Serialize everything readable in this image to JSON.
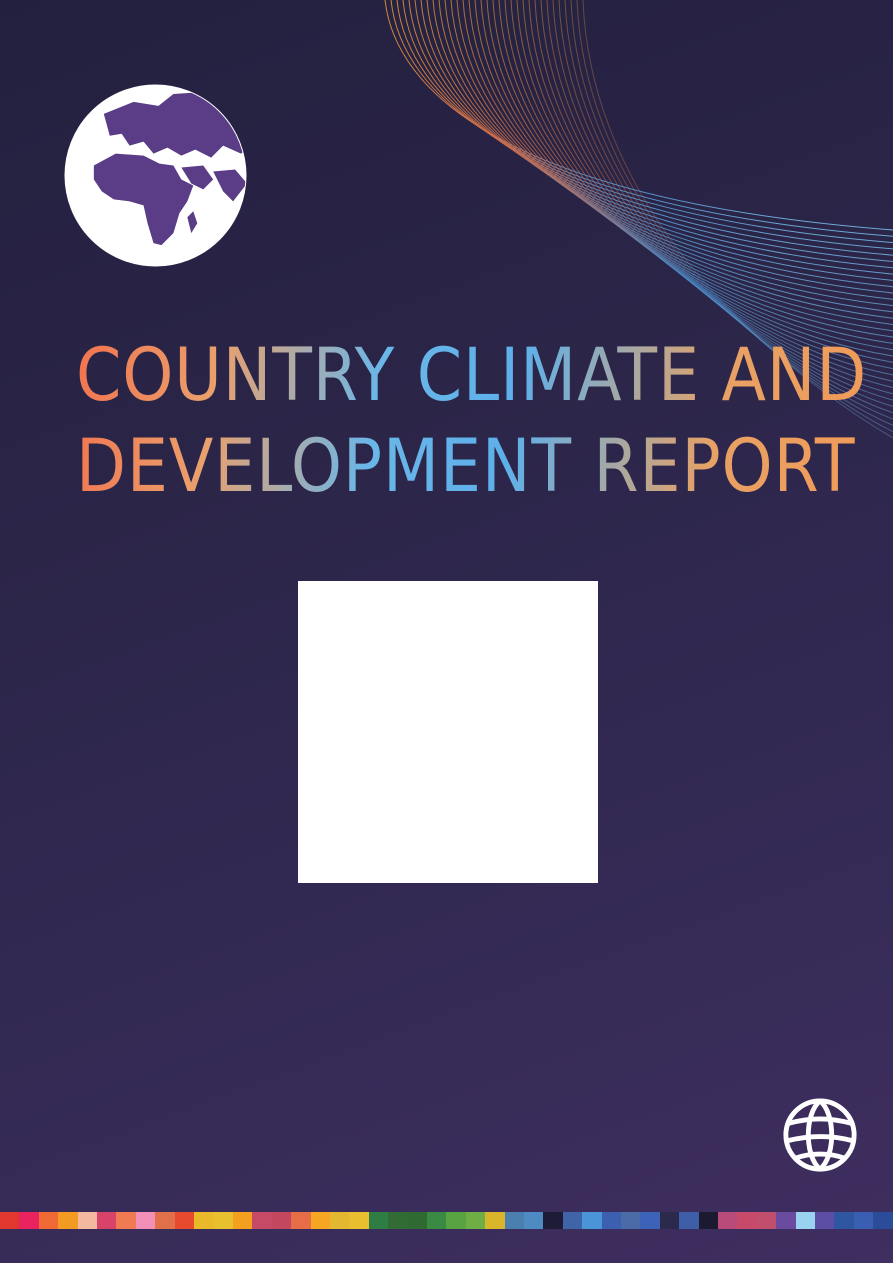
{
  "cover": {
    "title_line1": "COUNTRY CLIMATE AND",
    "title_line2": "DEVELOPMENT REPORT"
  },
  "icons": {
    "globe": "globe-africa-europe-icon",
    "logo": "world-bank-globe-icon"
  },
  "colors": {
    "background_top": "#23203f",
    "background_bottom": "#3f2e60",
    "globe_land": "#5a3d86",
    "title_gradient": [
      "#f2734e",
      "#e9a06d",
      "#6ab6e8",
      "#5eb0ea",
      "#e7a165",
      "#f29a57"
    ]
  },
  "stripe_colors": [
    "#e0382f",
    "#e8235f",
    "#f06a35",
    "#f29a22",
    "#f2b8a0",
    "#d9436a",
    "#f07a52",
    "#f28fb6",
    "#e0704a",
    "#e74a2c",
    "#e9b92a",
    "#e8c02f",
    "#f2a01e",
    "#c64a66",
    "#c2475f",
    "#e76d47",
    "#f5a623",
    "#e3b72f",
    "#e8c02f",
    "#2e7d44",
    "#336b35",
    "#2f6a32",
    "#3b8a43",
    "#5aa342",
    "#6fae45",
    "#d8b52a",
    "#4b7fb0",
    "#4e8bc2",
    "#1d1b35",
    "#3f64a8",
    "#4a95d8",
    "#3c5fb0",
    "#4a6aa8",
    "#3d63b8",
    "#2c2a4c",
    "#3f5ea8",
    "#1c1a30",
    "#b84b7a",
    "#c74a6a",
    "#c04e6c",
    "#6a4ba0",
    "#9ad3ef",
    "#5d4ea5",
    "#2f56a0",
    "#3a5fb2",
    "#2b4c98"
  ]
}
